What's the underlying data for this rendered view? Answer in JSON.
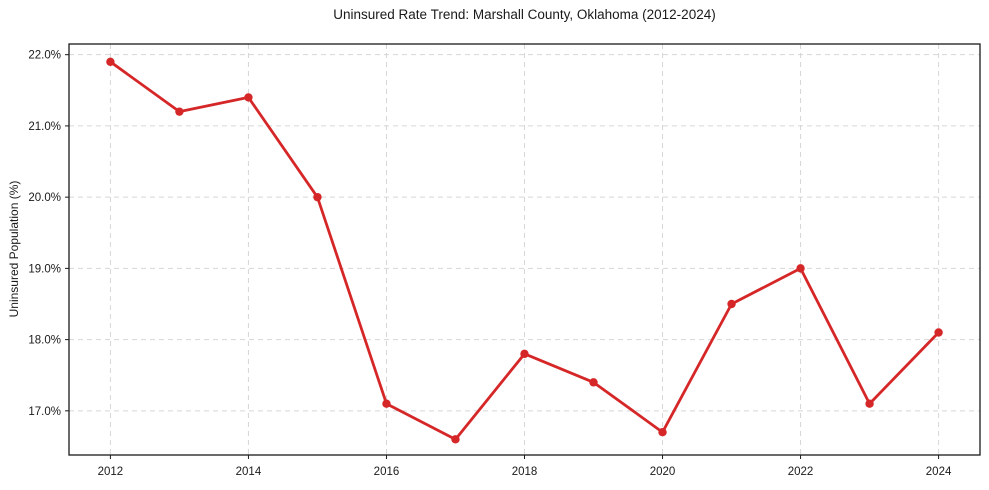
{
  "chart_data": {
    "type": "line",
    "title": "Uninsured Rate Trend: Marshall County, Oklahoma (2012-2024)",
    "xlabel": "",
    "ylabel": "Uninsured Population (%)",
    "x": [
      2012,
      2013,
      2014,
      2015,
      2016,
      2017,
      2018,
      2019,
      2020,
      2021,
      2022,
      2023,
      2024
    ],
    "values": [
      21.9,
      21.2,
      21.4,
      20.0,
      17.1,
      16.6,
      17.8,
      17.4,
      16.7,
      18.5,
      19.0,
      17.1,
      18.1
    ],
    "x_ticks": {
      "values": [
        2012,
        2014,
        2016,
        2018,
        2020,
        2022,
        2024
      ],
      "labels": [
        "2012",
        "2014",
        "2016",
        "2018",
        "2020",
        "2022",
        "2024"
      ]
    },
    "y_ticks": {
      "values": [
        17.0,
        18.0,
        19.0,
        20.0,
        21.0,
        22.0
      ],
      "labels": [
        "17.0%",
        "18.0%",
        "19.0%",
        "20.0%",
        "21.0%",
        "22.0%"
      ]
    },
    "xlim": [
      2011.4,
      2024.6
    ],
    "ylim": [
      16.38,
      22.15
    ],
    "grid": true,
    "grid_style": "dashed",
    "legend_position": "none",
    "colors": {
      "line": "#d62728",
      "marker": "#d62728",
      "grid": "#d6d6d6",
      "axis": "#1a1a1a",
      "text": "#1a1a1a",
      "background": "#ffffff"
    }
  }
}
